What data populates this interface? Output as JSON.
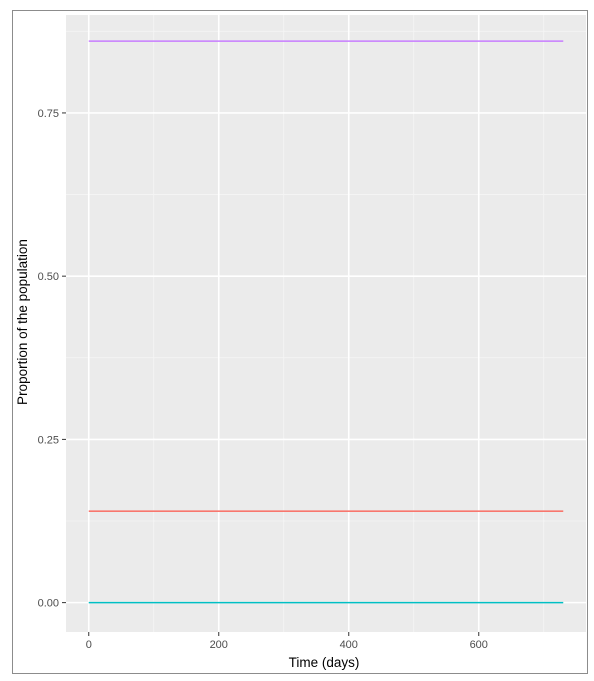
{
  "chart_data": {
    "type": "line",
    "title": "",
    "xlabel": "Time (days)",
    "ylabel": "Proportion of the population",
    "xlim": [
      -35,
      765
    ],
    "ylim": [
      -0.045,
      0.9
    ],
    "x_ticks": [
      0,
      200,
      400,
      600
    ],
    "x_tick_labels": [
      "0",
      "200",
      "400",
      "600"
    ],
    "y_ticks": [
      0,
      0.25,
      0.5,
      0.75
    ],
    "y_tick_labels": [
      "0.00",
      "0.25",
      "0.50",
      "0.75"
    ],
    "grid": true,
    "legend": "none",
    "series": [
      {
        "color": "#c77cff",
        "x": [
          0,
          730
        ],
        "y": [
          0.86,
          0.86
        ]
      },
      {
        "color": "#f8766d",
        "x": [
          0,
          730
        ],
        "y": [
          0.14,
          0.14
        ]
      },
      {
        "color": "#00bfc4",
        "x": [
          0,
          730
        ],
        "y": [
          0.0,
          0.0
        ]
      }
    ]
  },
  "colors": {
    "panel_background": "#ebebeb",
    "grid_major": "#ffffff",
    "grid_minor": "#f5f5f5"
  }
}
